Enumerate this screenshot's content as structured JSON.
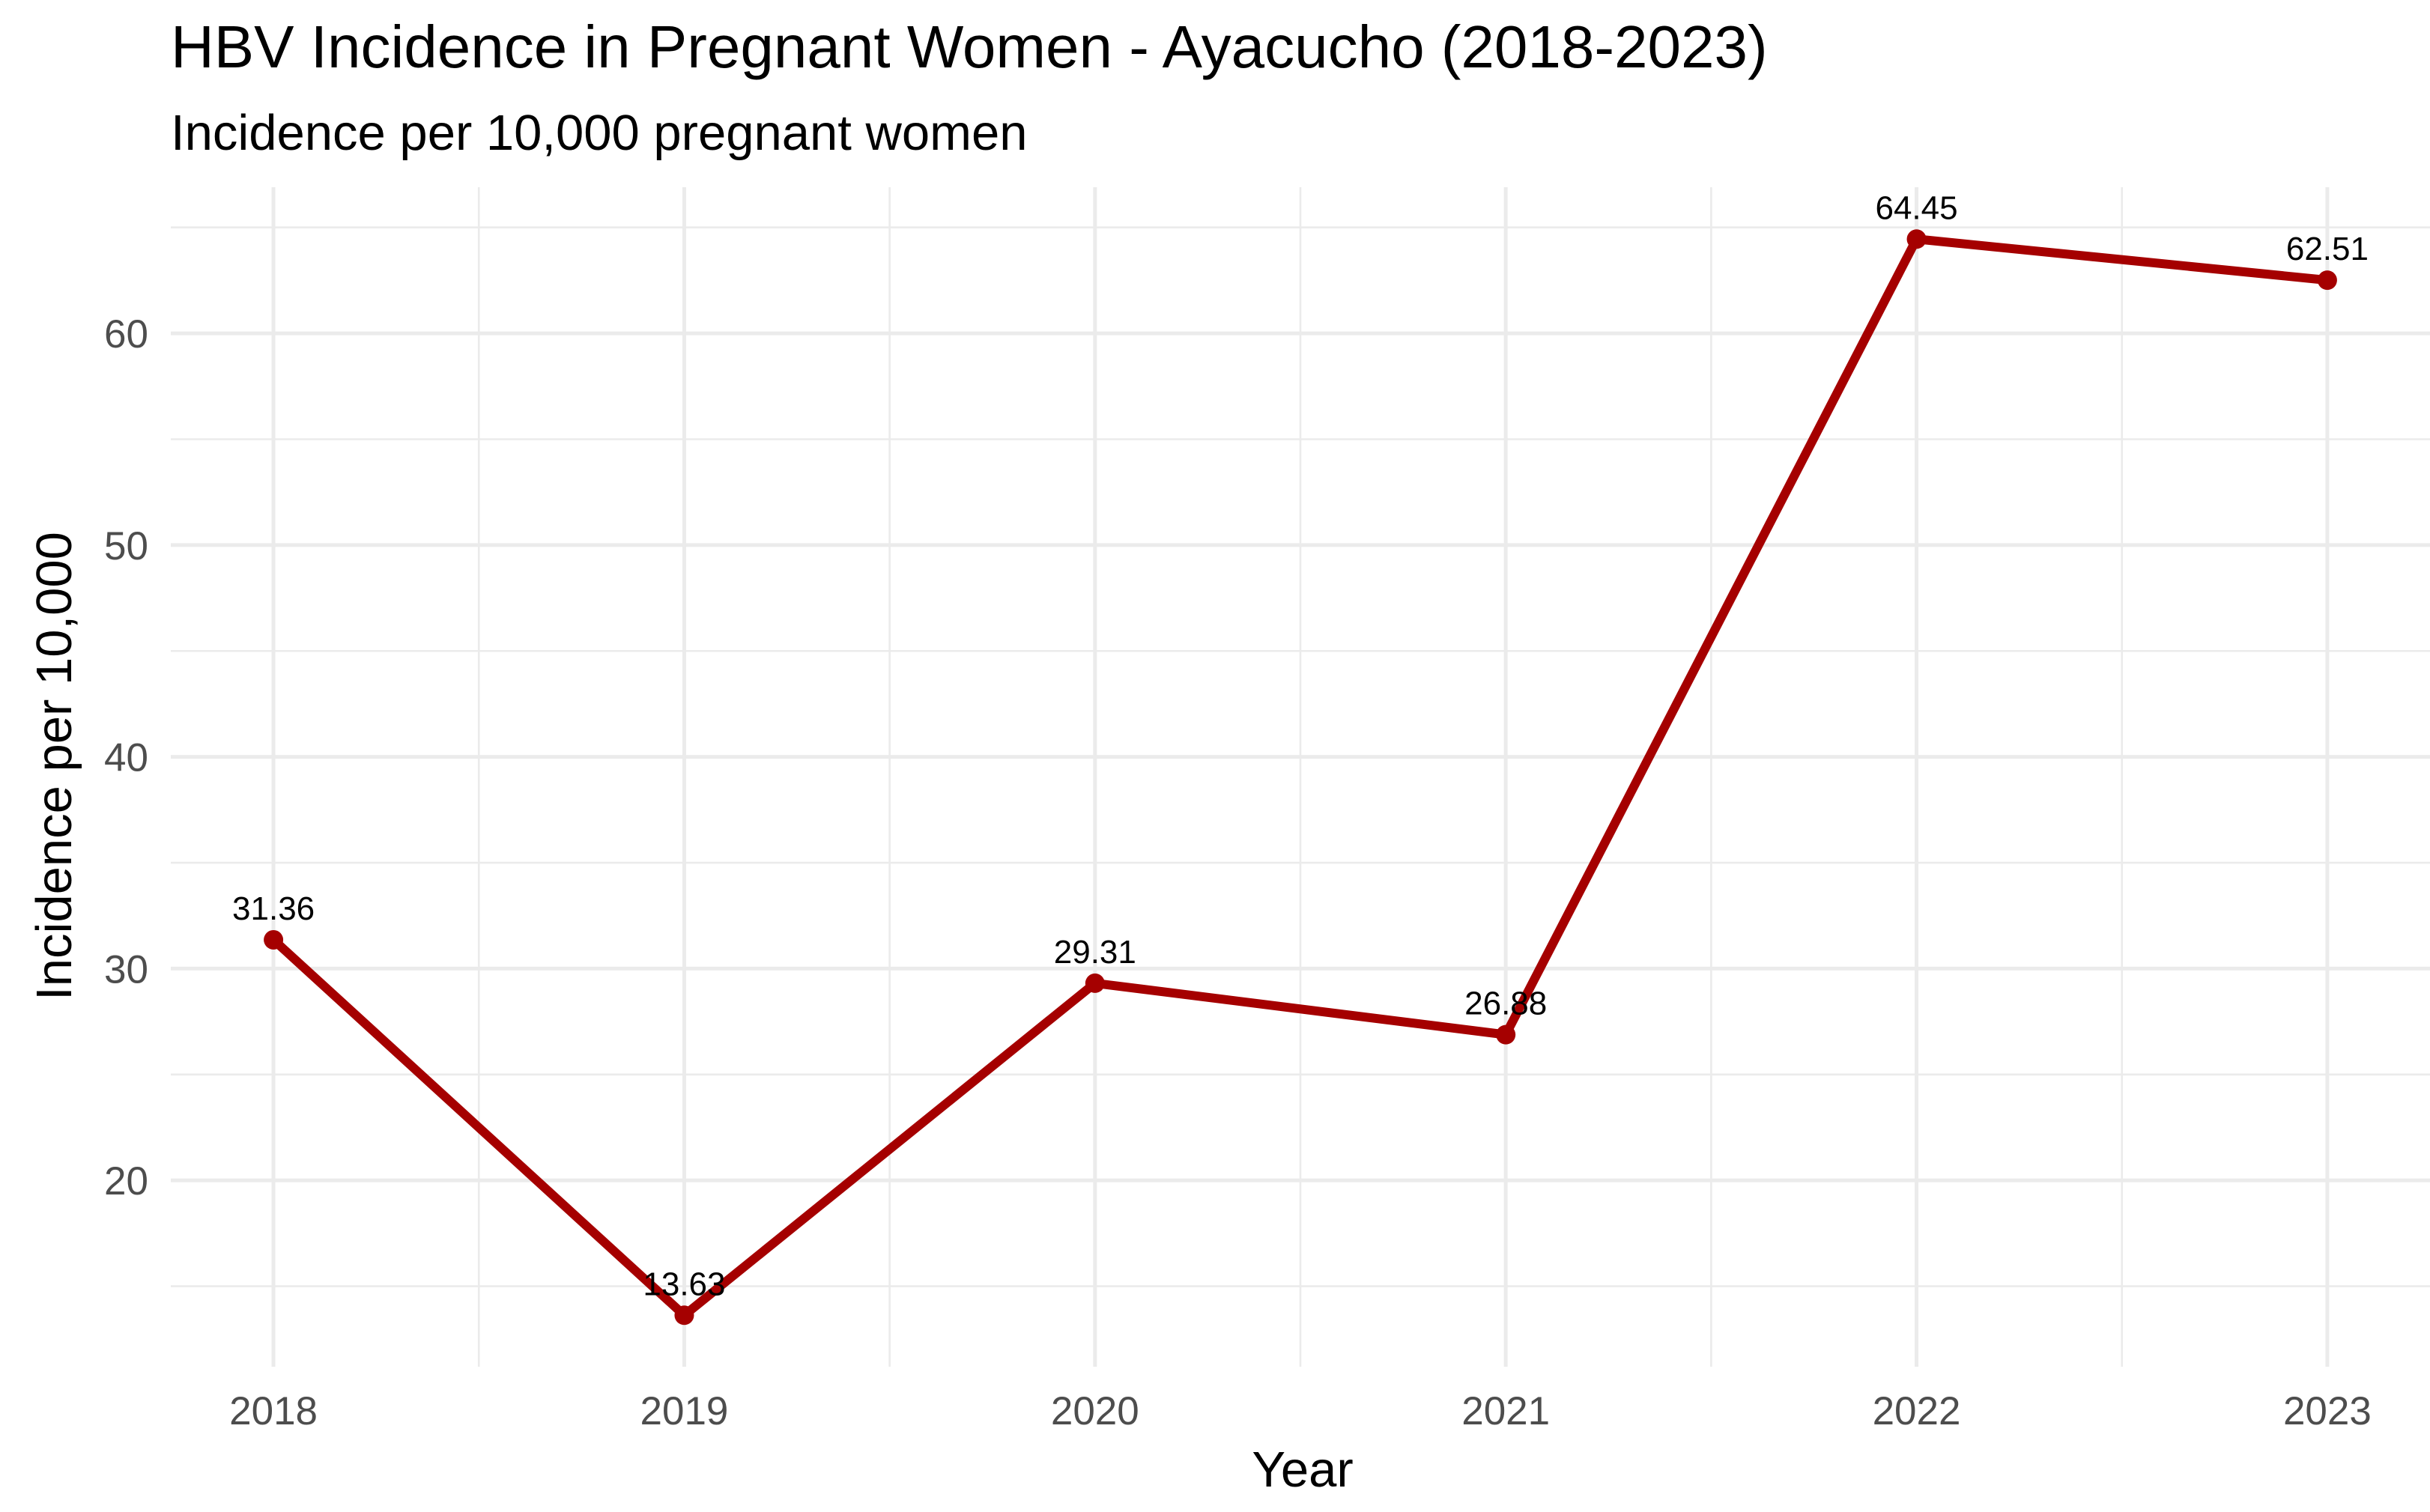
{
  "chart_data": {
    "type": "line",
    "title": "HBV Incidence in Pregnant Women - Ayacucho (2018-2023)",
    "subtitle": "Incidence per 10,000 pregnant women",
    "xlabel": "Year",
    "ylabel": "Incidence per 10,000",
    "x": [
      2018,
      2019,
      2020,
      2021,
      2022,
      2023
    ],
    "series": [
      {
        "values": [
          31.36,
          13.63,
          29.31,
          26.88,
          64.45,
          62.51
        ],
        "labels": [
          "31.36",
          "13.63",
          "29.31",
          "26.88",
          "64.45",
          "62.51"
        ],
        "color": "#a50000"
      }
    ],
    "xticks": [
      "2018",
      "2019",
      "2020",
      "2021",
      "2022",
      "2023"
    ],
    "yticks": [
      20,
      30,
      40,
      50,
      60
    ],
    "ytick_labels": [
      "20",
      "30",
      "40",
      "50",
      "60"
    ],
    "xlim": [
      2017.75,
      2023.25
    ],
    "ylim": [
      11.2,
      66.9
    ],
    "grid": true,
    "legend": "none"
  }
}
